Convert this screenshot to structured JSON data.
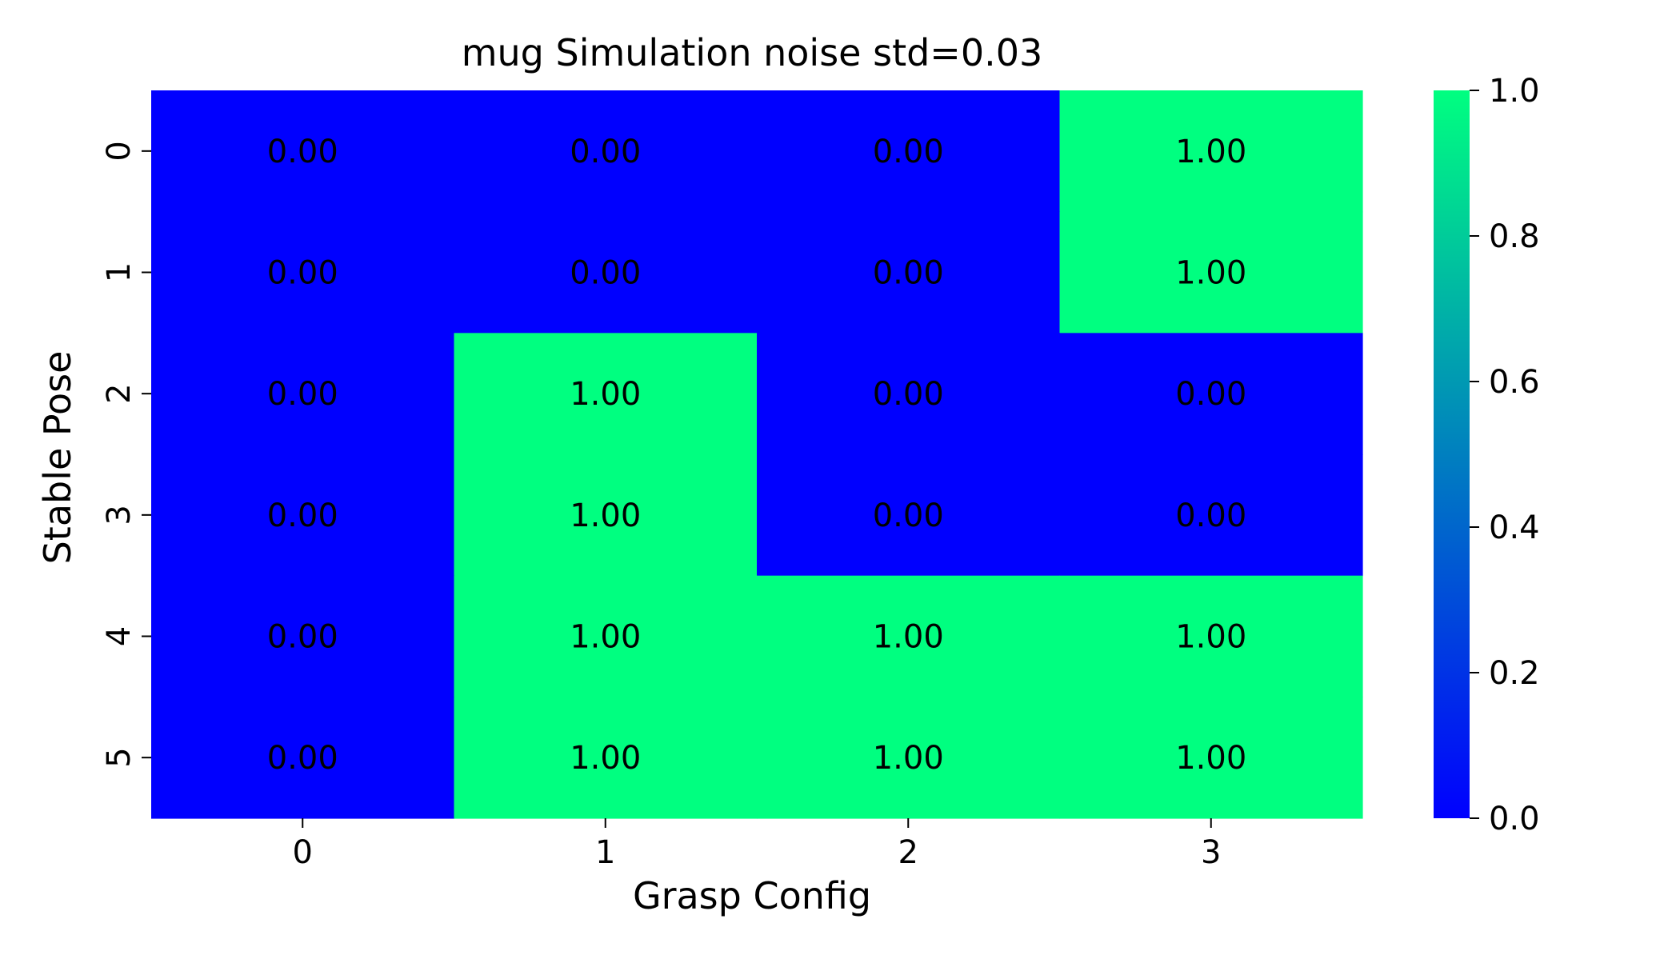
{
  "chart_data": {
    "type": "heatmap",
    "title": "mug Simulation noise std=0.03",
    "xlabel": "Grasp Config",
    "ylabel": "Stable Pose",
    "x_tick_labels": [
      "0",
      "1",
      "2",
      "3"
    ],
    "y_tick_labels": [
      "0",
      "1",
      "2",
      "3",
      "4",
      "5"
    ],
    "values": [
      [
        0,
        0,
        0,
        1
      ],
      [
        0,
        0,
        0,
        1
      ],
      [
        0,
        1,
        0,
        0
      ],
      [
        0,
        1,
        0,
        0
      ],
      [
        0,
        1,
        1,
        1
      ],
      [
        0,
        1,
        1,
        1
      ]
    ],
    "annotations": [
      [
        "0.00",
        "0.00",
        "0.00",
        "1.00"
      ],
      [
        "0.00",
        "0.00",
        "0.00",
        "1.00"
      ],
      [
        "0.00",
        "1.00",
        "0.00",
        "0.00"
      ],
      [
        "0.00",
        "1.00",
        "0.00",
        "0.00"
      ],
      [
        "0.00",
        "1.00",
        "1.00",
        "1.00"
      ],
      [
        "0.00",
        "1.00",
        "1.00",
        "1.00"
      ]
    ],
    "colormap": {
      "name": "winter",
      "low_color": "#0000ff",
      "high_color": "#00ff80"
    },
    "colorbar": {
      "range": [
        0.0,
        1.0
      ],
      "tick_values": [
        0.0,
        0.2,
        0.4,
        0.6,
        0.8,
        1.0
      ],
      "tick_labels": [
        "0.0",
        "0.2",
        "0.4",
        "0.6",
        "0.8",
        "1.0"
      ]
    },
    "grid": false
  }
}
